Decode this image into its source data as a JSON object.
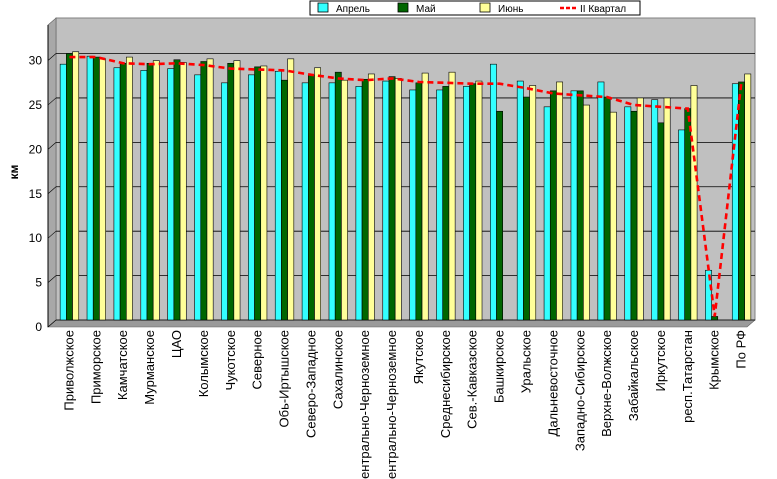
{
  "chart_data": {
    "type": "bar",
    "ylabel": "км",
    "ylim": [
      0,
      34
    ],
    "yticks": [
      0,
      5,
      10,
      15,
      20,
      25,
      30
    ],
    "grid": true,
    "legend_position": "top-right",
    "categories": [
      "Приволжское",
      "Приморское",
      "Камчатское",
      "Мурманское",
      "ЦАО",
      "Колымское",
      "Чукотское",
      "Северное",
      "Обь-Иртышское",
      "Северо-Западное",
      "Сахалинское",
      "Центрально-Черноземное",
      "Центрально-Черноземное",
      "Якутское",
      "Среднесибирское",
      "Сев.-Кавказское",
      "Башкирское",
      "Уральское",
      "Дальневосточное",
      "Западно-Сибирское",
      "Верхне-Волжское",
      "Забайкальское",
      "Иркутское",
      "респ.Татарстан",
      "Крымское",
      "По РФ"
    ],
    "series": [
      {
        "name": "Апрель",
        "color": "#33ffff",
        "values": [
          28.8,
          29.7,
          28.4,
          28.1,
          28.3,
          27.6,
          26.7,
          27.6,
          28.0,
          26.7,
          26.7,
          26.3,
          26.9,
          25.9,
          25.9,
          26.3,
          28.8,
          26.9,
          24.0,
          25.8,
          26.8,
          24.0,
          24.8,
          21.4,
          5.6,
          26.6
        ]
      },
      {
        "name": "Май",
        "color": "#006600",
        "values": [
          30.0,
          29.6,
          28.9,
          28.9,
          29.3,
          29.1,
          28.9,
          28.5,
          27.0,
          27.6,
          27.9,
          27.1,
          27.4,
          26.7,
          26.3,
          26.6,
          23.5,
          25.1,
          25.8,
          25.8,
          25.1,
          23.5,
          22.2,
          23.8,
          0.4,
          26.8
        ]
      },
      {
        "name": "Июнь",
        "color": "#ffff99",
        "values": [
          30.2,
          29.4,
          29.6,
          29.2,
          29.0,
          29.4,
          29.2,
          28.6,
          29.4,
          28.4,
          27.0,
          27.7,
          27.2,
          27.8,
          27.9,
          26.9,
          0,
          26.4,
          26.8,
          24.2,
          23.4,
          25.0,
          25.0,
          26.4,
          0,
          27.7
        ]
      },
      {
        "name": "II Квартал",
        "color": "#ff0000",
        "style": "dashed-line",
        "values": [
          29.6,
          29.6,
          28.9,
          28.8,
          28.9,
          28.7,
          28.3,
          28.2,
          28.1,
          27.6,
          27.2,
          27.0,
          27.2,
          26.8,
          26.7,
          26.6,
          26.6,
          26.1,
          25.5,
          25.3,
          25.1,
          24.2,
          24.0,
          23.8,
          0.4,
          27.0
        ]
      }
    ]
  }
}
